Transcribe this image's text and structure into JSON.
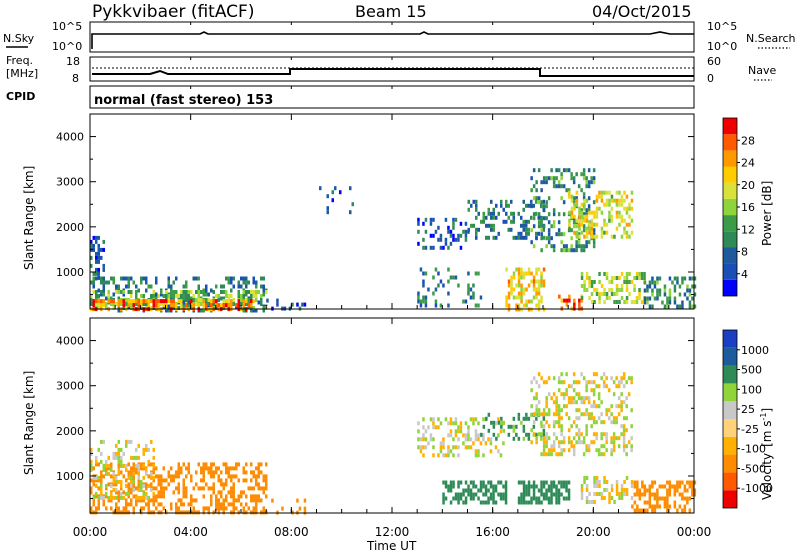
{
  "header": {
    "station": "Pykkvibaer (fitACF)",
    "beam": "Beam 15",
    "date": "04/Oct/2015"
  },
  "noise_panel": {
    "left_label": "N.Sky",
    "right_label": "N.Search",
    "left_ticks": [
      "10^5",
      "10^0"
    ],
    "right_ticks": [
      "10^5",
      "10^0"
    ]
  },
  "freq_panel": {
    "left_label_1": "Freq.",
    "left_label_2": "[MHz]",
    "right_label": "Nave",
    "left_ticks": [
      "18",
      "8"
    ],
    "right_ticks": [
      "60",
      "0"
    ]
  },
  "cpid_panel": {
    "label": "CPID",
    "text": "normal (fast stereo) 153"
  },
  "chart_data": [
    {
      "type": "heatmap",
      "name": "power",
      "ylabel": "Slant Range [km]",
      "yticks": [
        1000,
        2000,
        3000,
        4000
      ],
      "xticks": [
        "00:00",
        "04:00",
        "08:00",
        "12:00",
        "16:00",
        "20:00",
        "00:00"
      ],
      "xlim_hours": [
        0,
        24
      ],
      "ylim_km": [
        180,
        4500
      ],
      "colorbar_label": "Power [dB]",
      "colorbar_ticks": [
        "28",
        "24",
        "20",
        "16",
        "12",
        "8",
        "4"
      ],
      "colorbar_colors": [
        "#0000ff",
        "#1a4fb5",
        "#1e5b9c",
        "#2e8b57",
        "#3c9b46",
        "#8fd43a",
        "#d8e23a",
        "#ffcc00",
        "#ff9900",
        "#ff5a00",
        "#ee0000"
      ],
      "regions": [
        {
          "t0": 0.0,
          "t1": 7.0,
          "r0": 180,
          "r1": 900,
          "level": 8,
          "density": 0.35
        },
        {
          "t0": 0.0,
          "t1": 7.0,
          "r0": 200,
          "r1": 600,
          "level": 14,
          "density": 0.55
        },
        {
          "t0": 0.0,
          "t1": 6.5,
          "r0": 180,
          "r1": 400,
          "level": 24,
          "density": 0.6
        },
        {
          "t0": 0.0,
          "t1": 0.5,
          "r0": 900,
          "r1": 1800,
          "level": 6,
          "density": 0.5
        },
        {
          "t0": 7.0,
          "t1": 8.5,
          "r0": 200,
          "r1": 500,
          "level": 6,
          "density": 0.25
        },
        {
          "t0": 9.0,
          "t1": 10.5,
          "r0": 2300,
          "r1": 2900,
          "level": 6,
          "density": 0.1
        },
        {
          "t0": 13.0,
          "t1": 15.0,
          "r0": 1500,
          "r1": 2200,
          "level": 6,
          "density": 0.35
        },
        {
          "t0": 13.0,
          "t1": 15.5,
          "r0": 300,
          "r1": 1100,
          "level": 8,
          "density": 0.2
        },
        {
          "t0": 15.0,
          "t1": 18.0,
          "r0": 1800,
          "r1": 2600,
          "level": 8,
          "density": 0.35
        },
        {
          "t0": 16.5,
          "t1": 18.0,
          "r0": 200,
          "r1": 1100,
          "level": 20,
          "density": 0.5
        },
        {
          "t0": 17.5,
          "t1": 20.0,
          "r0": 1500,
          "r1": 3300,
          "level": 10,
          "density": 0.3
        },
        {
          "t0": 18.5,
          "t1": 19.5,
          "r0": 200,
          "r1": 500,
          "level": 26,
          "density": 0.6
        },
        {
          "t0": 19.0,
          "t1": 21.5,
          "r0": 1800,
          "r1": 2800,
          "level": 18,
          "density": 0.4
        },
        {
          "t0": 19.5,
          "t1": 22.0,
          "r0": 300,
          "r1": 1000,
          "level": 16,
          "density": 0.5
        },
        {
          "t0": 22.0,
          "t1": 24.0,
          "r0": 200,
          "r1": 900,
          "level": 10,
          "density": 0.45
        }
      ]
    },
    {
      "type": "heatmap",
      "name": "velocity",
      "ylabel": "Slant Range [km]",
      "yticks": [
        1000,
        2000,
        3000,
        4000
      ],
      "xticks": [
        "00:00",
        "04:00",
        "08:00",
        "12:00",
        "16:00",
        "20:00",
        "00:00"
      ],
      "xlabel": "Time UT",
      "xlim_hours": [
        0,
        24
      ],
      "ylim_km": [
        180,
        4500
      ],
      "colorbar_label": "Velocity",
      "colorbar_unit": "[m s",
      "colorbar_unit_exp": "-1",
      "colorbar_unit_close": "]",
      "colorbar_ticks": [
        "1000",
        "500",
        "100",
        "25",
        "-25",
        "-100",
        "-500",
        "-1000"
      ],
      "colorbar_colors": [
        "#ee0000",
        "#ff5a00",
        "#ff8c00",
        "#ffb000",
        "#ffd27a",
        "#c8c8c8",
        "#8fd43a",
        "#2e8b57",
        "#1e5b9c",
        "#1a3fc0"
      ],
      "regions": [
        {
          "t0": 0.0,
          "t1": 7.0,
          "r0": 180,
          "r1": 1300,
          "level": -300,
          "density": 0.45
        },
        {
          "t0": 0.0,
          "t1": 2.5,
          "r0": 500,
          "r1": 1800,
          "level": 0,
          "density": 0.3
        },
        {
          "t0": 7.0,
          "t1": 8.5,
          "r0": 200,
          "r1": 500,
          "level": -200,
          "density": 0.2
        },
        {
          "t0": 13.0,
          "t1": 16.5,
          "r0": 1500,
          "r1": 2300,
          "level": 0,
          "density": 0.35
        },
        {
          "t0": 14.0,
          "t1": 16.5,
          "r0": 400,
          "r1": 900,
          "level": 200,
          "density": 0.6
        },
        {
          "t0": 15.5,
          "t1": 18.0,
          "r0": 1800,
          "r1": 2400,
          "level": 150,
          "density": 0.25
        },
        {
          "t0": 17.0,
          "t1": 19.0,
          "r0": 400,
          "r1": 900,
          "level": 200,
          "density": 0.65
        },
        {
          "t0": 17.5,
          "t1": 21.5,
          "r0": 1500,
          "r1": 3300,
          "level": 0,
          "density": 0.35
        },
        {
          "t0": 19.5,
          "t1": 21.5,
          "r0": 400,
          "r1": 1000,
          "level": 0,
          "density": 0.45
        },
        {
          "t0": 21.5,
          "t1": 24.0,
          "r0": 200,
          "r1": 900,
          "level": -300,
          "density": 0.5
        }
      ]
    }
  ]
}
